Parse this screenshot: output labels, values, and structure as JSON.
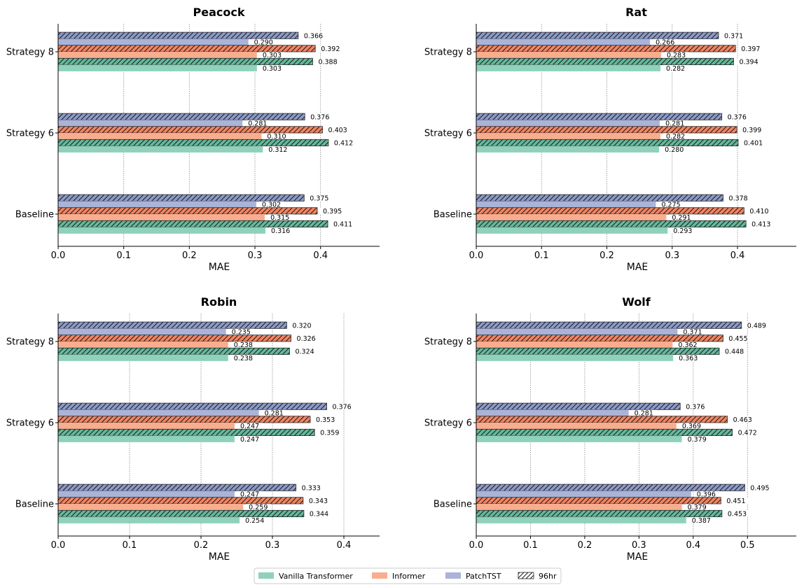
{
  "colors": {
    "Vanilla Transformer": "#8fd1bb",
    "Informer": "#f9ad8f",
    "PatchTST": "#aab4d8",
    "Vanilla Transformer_hatch": "#63b89a",
    "Informer_hatch": "#f28461",
    "PatchTST_hatch": "#8b9ac9"
  },
  "legend": {
    "items": [
      "Vanilla Transformer",
      "Informer",
      "PatchTST",
      "96hr"
    ]
  },
  "chart_data": [
    {
      "type": "bar",
      "orientation": "horizontal",
      "title": "Peacock",
      "xlabel": "MAE",
      "xlim": [
        0,
        0.49
      ],
      "xticks": [
        0.0,
        0.1,
        0.2,
        0.3,
        0.4
      ],
      "grid": "x, dotted",
      "categories": [
        "Strategy 8",
        "Strategy 6",
        "Baseline"
      ],
      "series": [
        {
          "name": "PatchTST",
          "style": "hatched",
          "values": [
            0.366,
            0.376,
            0.375
          ]
        },
        {
          "name": "PatchTST",
          "style": "solid",
          "values": [
            0.29,
            0.281,
            0.302
          ]
        },
        {
          "name": "Informer",
          "style": "hatched",
          "values": [
            0.392,
            0.403,
            0.395
          ]
        },
        {
          "name": "Informer",
          "style": "solid",
          "values": [
            0.303,
            0.31,
            0.315
          ]
        },
        {
          "name": "Vanilla Transformer",
          "style": "hatched",
          "values": [
            0.388,
            0.412,
            0.411
          ]
        },
        {
          "name": "Vanilla Transformer",
          "style": "solid",
          "values": [
            0.303,
            0.312,
            0.316
          ]
        }
      ]
    },
    {
      "type": "bar",
      "orientation": "horizontal",
      "title": "Rat",
      "xlabel": "MAE",
      "xlim": [
        0,
        0.49
      ],
      "xticks": [
        0.0,
        0.1,
        0.2,
        0.3,
        0.4
      ],
      "grid": "x, dotted",
      "categories": [
        "Strategy 8",
        "Strategy 6",
        "Baseline"
      ],
      "series": [
        {
          "name": "PatchTST",
          "style": "hatched",
          "values": [
            0.371,
            0.376,
            0.378
          ]
        },
        {
          "name": "PatchTST",
          "style": "solid",
          "values": [
            0.266,
            0.281,
            0.275
          ]
        },
        {
          "name": "Informer",
          "style": "hatched",
          "values": [
            0.397,
            0.399,
            0.41
          ]
        },
        {
          "name": "Informer",
          "style": "solid",
          "values": [
            0.283,
            0.282,
            0.291
          ]
        },
        {
          "name": "Vanilla Transformer",
          "style": "hatched",
          "values": [
            0.394,
            0.401,
            0.413
          ]
        },
        {
          "name": "Vanilla Transformer",
          "style": "solid",
          "values": [
            0.282,
            0.28,
            0.293
          ]
        }
      ]
    },
    {
      "type": "bar",
      "orientation": "horizontal",
      "title": "Robin",
      "xlabel": "MAE",
      "xlim": [
        0,
        0.45
      ],
      "xticks": [
        0.0,
        0.1,
        0.2,
        0.3,
        0.4
      ],
      "grid": "x, dotted",
      "categories": [
        "Strategy 8",
        "Strategy 6",
        "Baseline"
      ],
      "series": [
        {
          "name": "PatchTST",
          "style": "hatched",
          "values": [
            0.32,
            0.376,
            0.333
          ]
        },
        {
          "name": "PatchTST",
          "style": "solid",
          "values": [
            0.235,
            0.281,
            0.247
          ]
        },
        {
          "name": "Informer",
          "style": "hatched",
          "values": [
            0.326,
            0.353,
            0.343
          ]
        },
        {
          "name": "Informer",
          "style": "solid",
          "values": [
            0.238,
            0.247,
            0.259
          ]
        },
        {
          "name": "Vanilla Transformer",
          "style": "hatched",
          "values": [
            0.324,
            0.359,
            0.344
          ]
        },
        {
          "name": "Vanilla Transformer",
          "style": "solid",
          "values": [
            0.238,
            0.247,
            0.254
          ]
        }
      ]
    },
    {
      "type": "bar",
      "orientation": "horizontal",
      "title": "Wolf",
      "xlabel": "MAE",
      "xlim": [
        0,
        0.59
      ],
      "xticks": [
        0.0,
        0.1,
        0.2,
        0.3,
        0.4,
        0.5
      ],
      "grid": "x, dotted",
      "categories": [
        "Strategy 8",
        "Strategy 6",
        "Baseline"
      ],
      "series": [
        {
          "name": "PatchTST",
          "style": "hatched",
          "values": [
            0.489,
            0.376,
            0.495
          ]
        },
        {
          "name": "PatchTST",
          "style": "solid",
          "values": [
            0.371,
            0.281,
            0.396
          ]
        },
        {
          "name": "Informer",
          "style": "hatched",
          "values": [
            0.455,
            0.463,
            0.451
          ]
        },
        {
          "name": "Informer",
          "style": "solid",
          "values": [
            0.362,
            0.369,
            0.379
          ]
        },
        {
          "name": "Vanilla Transformer",
          "style": "hatched",
          "values": [
            0.448,
            0.472,
            0.453
          ]
        },
        {
          "name": "Vanilla Transformer",
          "style": "solid",
          "values": [
            0.363,
            0.379,
            0.387
          ]
        }
      ]
    }
  ]
}
